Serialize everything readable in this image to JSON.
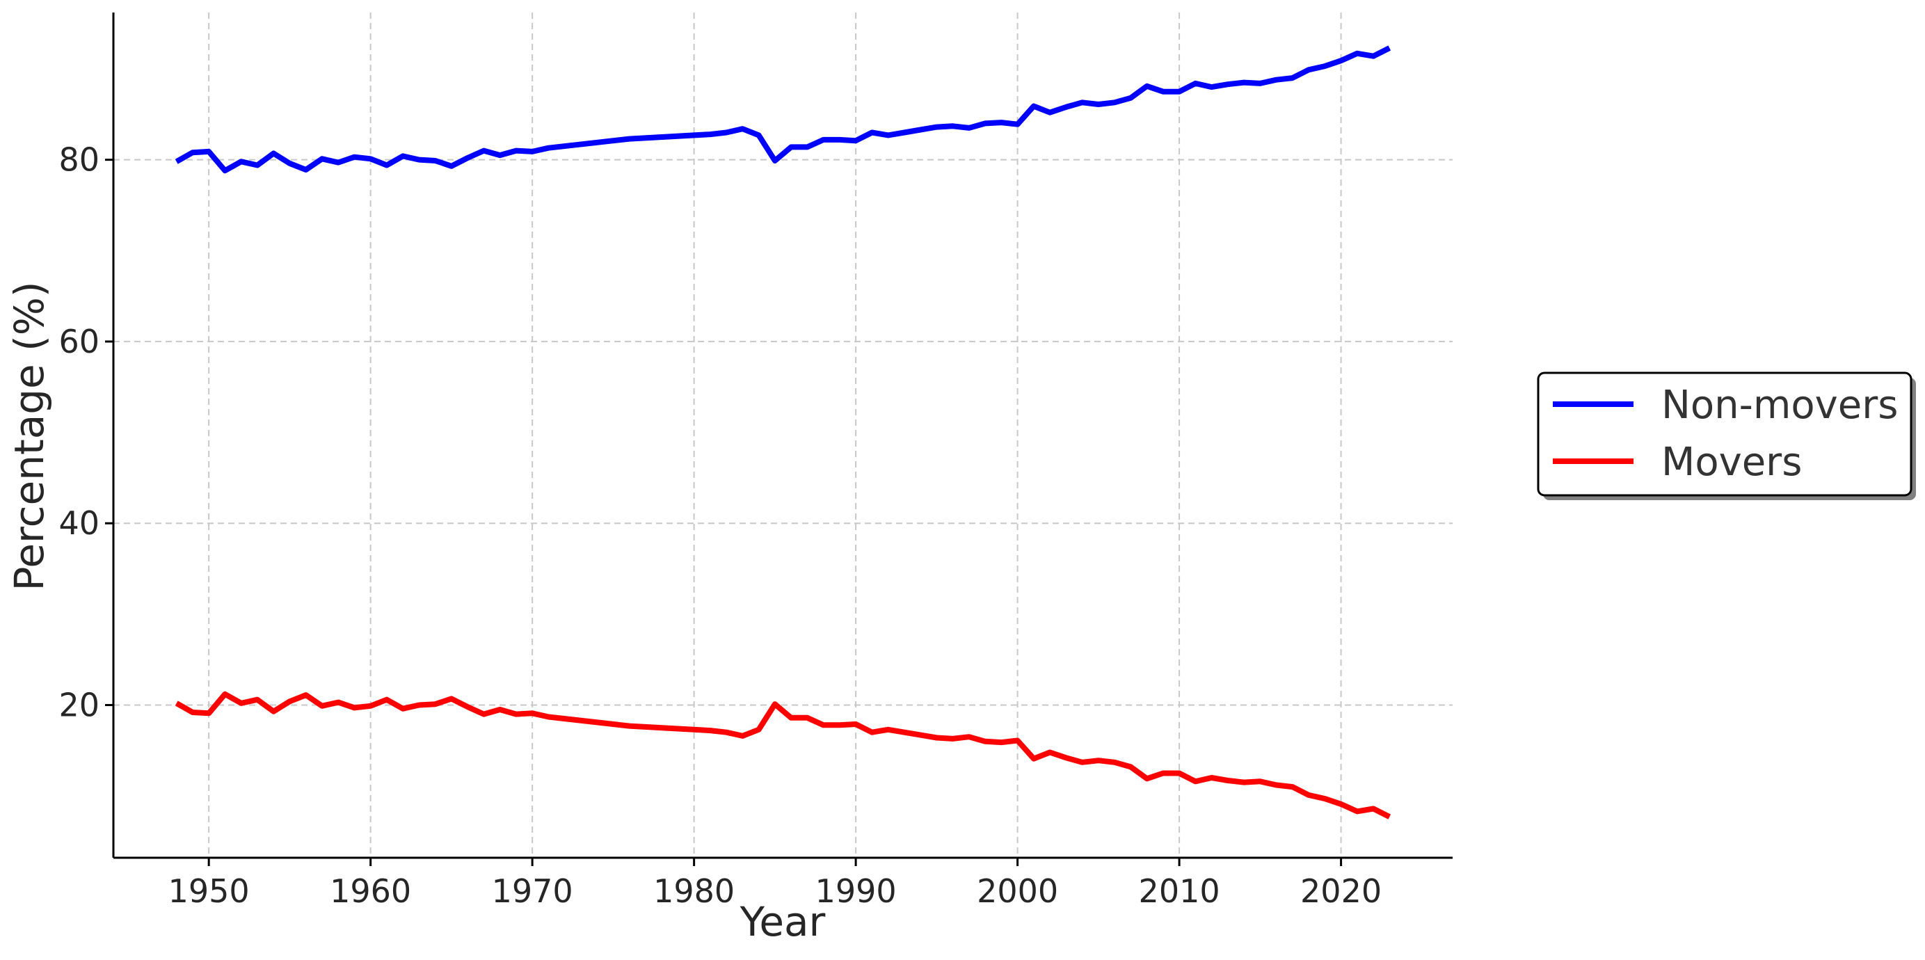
{
  "chart_data": {
    "type": "line",
    "title": "",
    "xlabel": "Year",
    "ylabel": "Percentage (%)",
    "xlim": [
      1944.1,
      2026.9
    ],
    "ylim": [
      3.2,
      96.2
    ],
    "xticks": [
      1950,
      1960,
      1970,
      1980,
      1990,
      2000,
      2010,
      2020
    ],
    "yticks": [
      20,
      40,
      60,
      80
    ],
    "grid": true,
    "legend_position": "right, outside plot",
    "x": [
      1948,
      1949,
      1950,
      1951,
      1952,
      1953,
      1954,
      1955,
      1956,
      1957,
      1958,
      1959,
      1960,
      1961,
      1962,
      1963,
      1964,
      1965,
      1966,
      1967,
      1968,
      1969,
      1970,
      1971,
      1976,
      1981,
      1982,
      1983,
      1984,
      1985,
      1986,
      1987,
      1988,
      1989,
      1990,
      1991,
      1992,
      1993,
      1994,
      1995,
      1996,
      1997,
      1998,
      1999,
      2000,
      2001,
      2002,
      2003,
      2004,
      2005,
      2006,
      2007,
      2008,
      2009,
      2010,
      2011,
      2012,
      2013,
      2014,
      2015,
      2016,
      2017,
      2018,
      2019,
      2020,
      2021,
      2022,
      2023
    ],
    "series": [
      {
        "name": "Non-movers",
        "color": "#0000ff",
        "values": [
          79.8,
          80.8,
          80.9,
          78.8,
          79.8,
          79.4,
          80.7,
          79.6,
          78.9,
          80.1,
          79.7,
          80.3,
          80.1,
          79.4,
          80.4,
          80.0,
          79.9,
          79.3,
          80.2,
          81.0,
          80.5,
          81.0,
          80.9,
          81.3,
          82.3,
          82.8,
          83.0,
          83.4,
          82.7,
          79.9,
          81.4,
          81.4,
          82.2,
          82.2,
          82.1,
          83.0,
          82.7,
          83.0,
          83.3,
          83.6,
          83.7,
          83.5,
          84.0,
          84.1,
          83.9,
          85.9,
          85.2,
          85.8,
          86.3,
          86.1,
          86.3,
          86.8,
          88.1,
          87.5,
          87.5,
          88.4,
          88.0,
          88.3,
          88.5,
          88.4,
          88.8,
          89.0,
          89.9,
          90.3,
          90.9,
          91.7,
          91.4,
          92.3
        ]
      },
      {
        "name": "Movers",
        "color": "#ff0000",
        "values": [
          20.2,
          19.2,
          19.1,
          21.2,
          20.2,
          20.6,
          19.3,
          20.4,
          21.1,
          19.9,
          20.3,
          19.7,
          19.9,
          20.6,
          19.6,
          20.0,
          20.1,
          20.7,
          19.8,
          19.0,
          19.5,
          19.0,
          19.1,
          18.7,
          17.7,
          17.2,
          17.0,
          16.6,
          17.3,
          20.1,
          18.6,
          18.6,
          17.8,
          17.8,
          17.9,
          17.0,
          17.3,
          17.0,
          16.7,
          16.4,
          16.3,
          16.5,
          16.0,
          15.9,
          16.1,
          14.1,
          14.8,
          14.2,
          13.7,
          13.9,
          13.7,
          13.2,
          11.9,
          12.5,
          12.5,
          11.6,
          12.0,
          11.7,
          11.5,
          11.6,
          11.2,
          11.0,
          10.1,
          9.7,
          9.1,
          8.3,
          8.6,
          7.7
        ]
      }
    ]
  }
}
